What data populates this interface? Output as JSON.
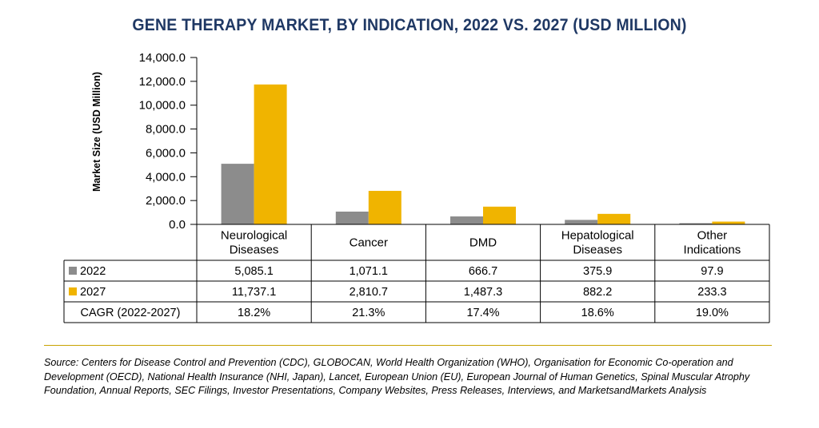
{
  "title": "GENE THERAPY MARKET, BY INDICATION, 2022 VS. 2027 (USD MILLION)",
  "source": "Source: Centers for Disease Control and Prevention (CDC), GLOBOCAN, World Health Organization (WHO), Organisation for Economic Co-operation and Development (OECD), National Health Insurance (NHI, Japan), Lancet, European Union (EU), European Journal of Human Genetics, Spinal Muscular Atrophy Foundation, Annual Reports, SEC Filings, Investor Presentations, Company Websites, Press Releases, Interviews, and MarketsandMarkets Analysis",
  "colors": {
    "series_2022": "#8c8c8c",
    "series_2027": "#f0b400",
    "title": "#1f3864",
    "rule": "#c8a200"
  },
  "chart_data": {
    "type": "bar",
    "title": "GENE THERAPY MARKET, BY INDICATION, 2022 VS. 2027 (USD MILLION)",
    "xlabel": "",
    "ylabel": "Market Size (USD Million)",
    "ylim": [
      0,
      14000
    ],
    "yticks": [
      "14,000.0",
      "12,000.0",
      "10,000.0",
      "8,000.0",
      "6,000.0",
      "4,000.0",
      "2,000.0",
      "0.0"
    ],
    "categories": [
      [
        "Neurological",
        "Diseases"
      ],
      [
        "Cancer"
      ],
      [
        "DMD"
      ],
      [
        "Hepatological",
        "Diseases"
      ],
      [
        "Other",
        "Indications"
      ]
    ],
    "series": [
      {
        "name": "2022",
        "values": [
          5085.1,
          1071.1,
          666.7,
          375.9,
          97.9
        ],
        "labels": [
          "5,085.1",
          "1,071.1",
          "666.7",
          "375.9",
          "97.9"
        ]
      },
      {
        "name": "2027",
        "values": [
          11737.1,
          2810.7,
          1487.3,
          882.2,
          233.3
        ],
        "labels": [
          "11,737.1",
          "2,810.7",
          "1,487.3",
          "882.2",
          "233.3"
        ]
      }
    ],
    "cagr": {
      "label": "CAGR (2022-2027)",
      "values": [
        "18.2%",
        "21.3%",
        "17.4%",
        "18.6%",
        "19.0%"
      ]
    },
    "grid": false,
    "legend": "data-table"
  }
}
